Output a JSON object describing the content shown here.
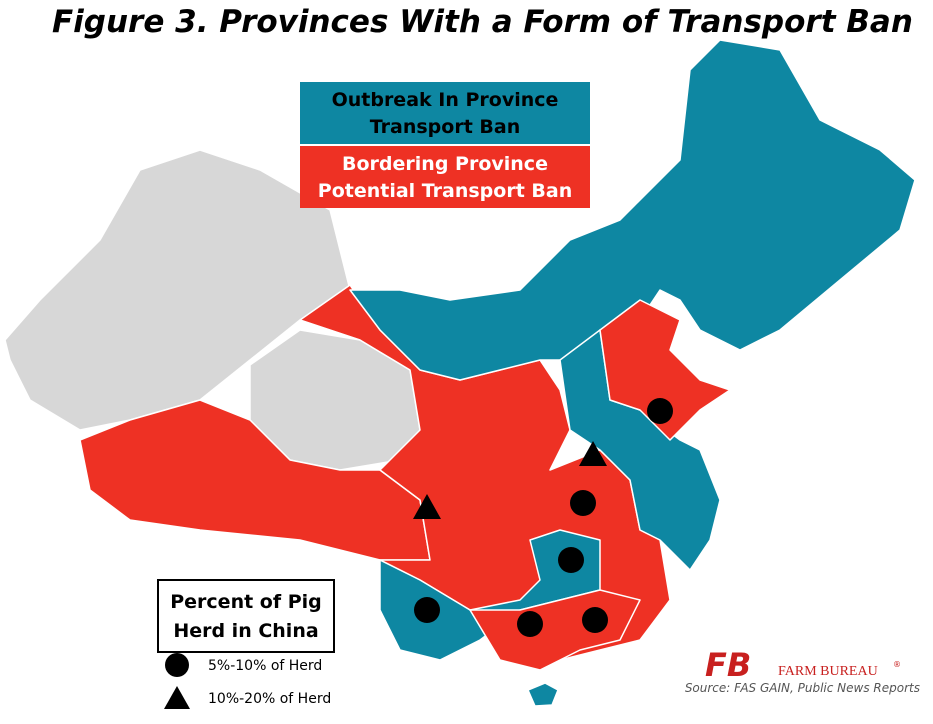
{
  "title": "Figure 3. Provinces With a Form of Transport Ban",
  "status_legend": {
    "outbreak": {
      "line1": "Outbreak In Province",
      "line2": "Transport Ban"
    },
    "bordering": {
      "line1": "Bordering Province",
      "line2": "Potential Transport Ban"
    }
  },
  "herd_legend": {
    "title_line1": "Percent of Pig",
    "title_line2": "Herd in China",
    "items": [
      "5%-10% of Herd",
      "10%-20% of Herd"
    ]
  },
  "logo": {
    "mark": "FB",
    "name": "FARM BUREAU",
    "trademark": "®"
  },
  "source": "Source: FAS GAIN, Public News Reports"
}
